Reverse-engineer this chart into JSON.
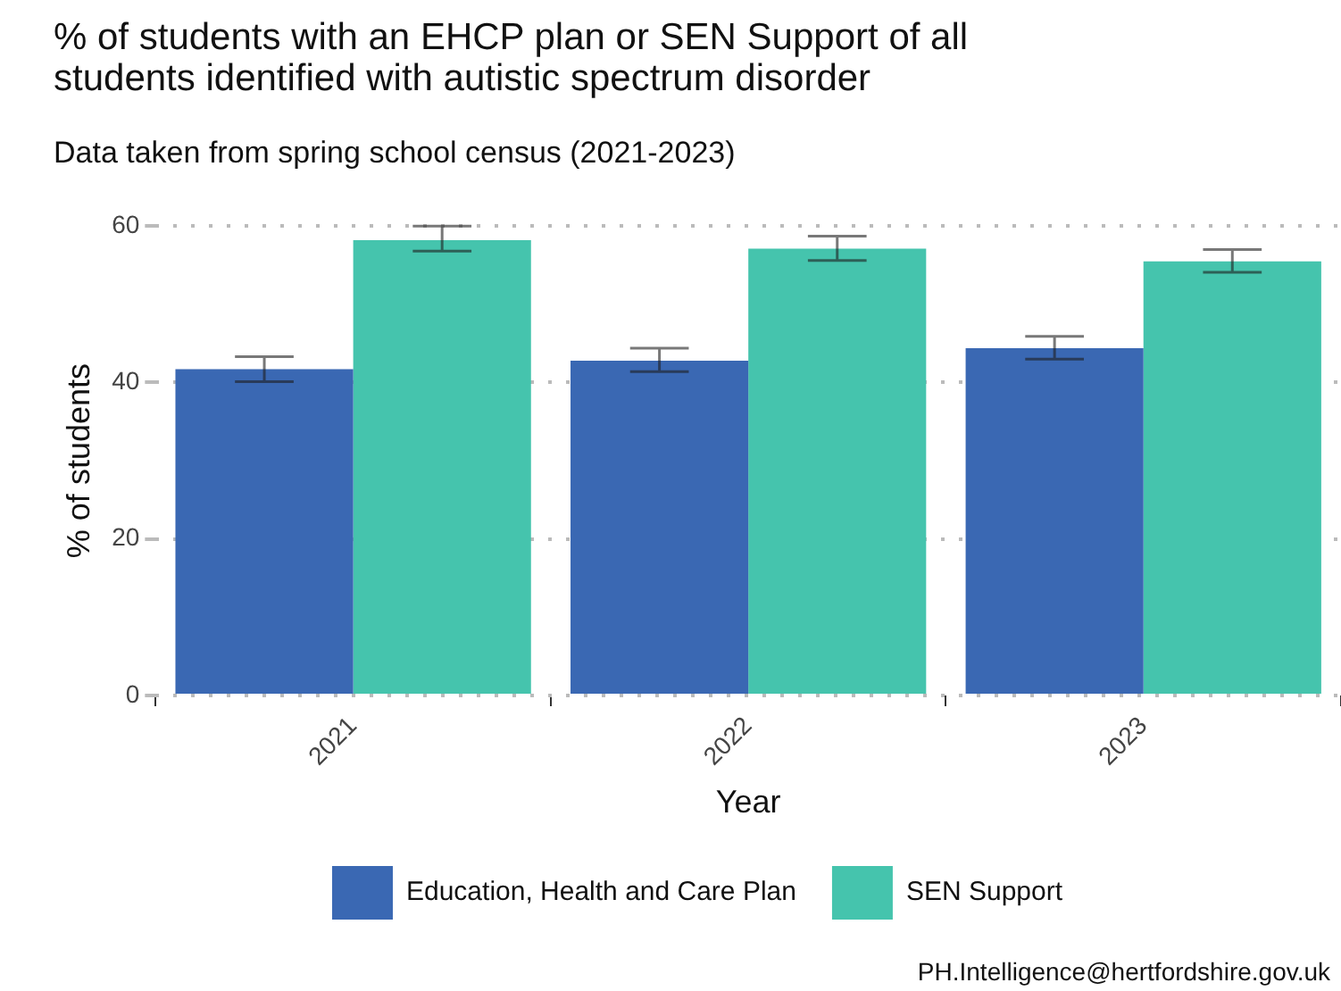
{
  "chart_data": {
    "type": "bar",
    "title": [
      "% of students with an EHCP plan or SEN Support of all",
      "students identified with autistic spectrum disorder"
    ],
    "subtitle": "Data taken from spring school census (2021-2023)",
    "xlabel": "Year",
    "ylabel": "% of students",
    "categories": [
      "2021",
      "2022",
      "2023"
    ],
    "series": [
      {
        "name": "Education, Health and Care Plan",
        "color": "#3a68b3",
        "values": [
          41.7,
          42.8,
          44.4
        ],
        "errors": [
          [
            40.1,
            43.3
          ],
          [
            41.4,
            44.4
          ],
          [
            43.0,
            45.9
          ]
        ]
      },
      {
        "name": "SEN Support",
        "color": "#45c4ad",
        "values": [
          58.2,
          57.1,
          55.5
        ],
        "errors": [
          [
            56.8,
            60.0
          ],
          [
            55.6,
            58.7
          ],
          [
            54.1,
            57.0
          ]
        ]
      }
    ],
    "ylim": [
      0,
      60
    ],
    "yticks": [
      0,
      20,
      40,
      60
    ],
    "grid": "y",
    "legend": "bottom",
    "annotations": [
      "PH.Intelligence@hertfordshire.gov.uk"
    ]
  }
}
